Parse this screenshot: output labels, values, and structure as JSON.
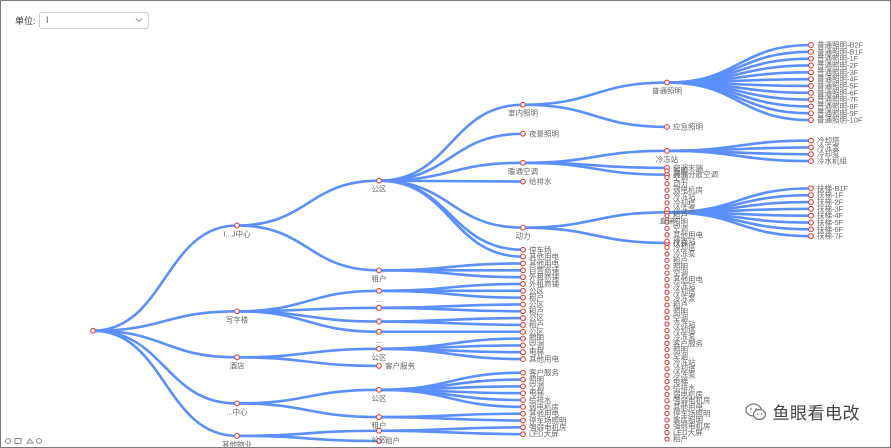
{
  "toolbar": {
    "unit_label": "单位:",
    "unit_value": "I"
  },
  "watermark": {
    "text": "鱼眼看电改",
    "icon": "wechat-icon"
  },
  "colors": {
    "edge": "#5b8ff9",
    "node_stroke": "#d84343",
    "label": "#666666"
  },
  "tree": {
    "name": "",
    "children": [
      {
        "name": "I...J中心",
        "children": [
          {
            "name": "公区",
            "children": [
              {
                "name": "室内照明",
                "children": [
                  {
                    "name": "普通照明",
                    "children": [
                      {
                        "name": "普通照明-B2F"
                      },
                      {
                        "name": "普通照明-B1F"
                      },
                      {
                        "name": "普通照明-1F"
                      },
                      {
                        "name": "普通照明-2F"
                      },
                      {
                        "name": "普通照明-3F"
                      },
                      {
                        "name": "普通照明-4F"
                      },
                      {
                        "name": "普通照明-5F"
                      },
                      {
                        "name": "普通照明-6F"
                      },
                      {
                        "name": "普通照明-7F"
                      },
                      {
                        "name": "普通照明-8F"
                      },
                      {
                        "name": "普通照明-9F"
                      },
                      {
                        "name": "普通照明-10F"
                      }
                    ]
                  },
                  {
                    "name": "应急照明"
                  }
                ]
              },
              {
                "name": "夜景照明"
              },
              {
                "name": "暖通空调",
                "children": [
                  {
                    "name": "冷冻站",
                    "children": [
                      {
                        "name": "冷却塔"
                      },
                      {
                        "name": "冷冻泵"
                      },
                      {
                        "name": "冷却泵"
                      },
                      {
                        "name": "冷水机组"
                      }
                    ]
                  },
                  {
                    "name": "空调末端"
                  },
                  {
                    "name": "其他分散空调"
                  }
                ]
              },
              {
                "name": "给排水"
              },
              {
                "name": "动力",
                "children": [
                  {
                    "name": "直梯",
                    "children": [
                      {
                        "name": "扶梯-B1F"
                      },
                      {
                        "name": "扶梯-1F"
                      },
                      {
                        "name": "扶梯-2F"
                      },
                      {
                        "name": "扶梯-3F"
                      },
                      {
                        "name": "扶梯-4F"
                      },
                      {
                        "name": "扶梯-5F"
                      },
                      {
                        "name": "扶梯-6F"
                      },
                      {
                        "name": "扶梯-7F"
                      }
                    ]
                  },
                  {
                    "name": "扶梯"
                  }
                ]
              },
              {
                "name": "停车场"
              },
              {
                "name": "其他用电"
              }
            ]
          },
          {
            "name": "租户",
            "children": [
              {
                "name": "其他用电"
              },
              {
                "name": "自营商铺"
              },
              {
                "name": "外租商铺"
              }
            ]
          }
        ]
      },
      {
        "name": "写字楼",
        "children": [
          {
            "name": "...",
            "children": [
              {
                "name": "外租商铺"
              },
              {
                "name": "公区"
              },
              {
                "name": "租户"
              }
            ]
          },
          {
            "name": "...",
            "children": [
              {
                "name": "公区"
              },
              {
                "name": "租户"
              }
            ]
          },
          {
            "name": "...",
            "children": [
              {
                "name": "公区"
              },
              {
                "name": "租户"
              }
            ]
          },
          {
            "name": "...",
            "children": [
              {
                "name": "公区"
              }
            ]
          }
        ]
      },
      {
        "name": "酒店",
        "children": [
          {
            "name": "公区",
            "children": [
              {
                "name": "照明"
              },
              {
                "name": "空调"
              },
              {
                "name": "电梯"
              },
              {
                "name": "其他用电"
              }
            ]
          },
          {
            "name": "客户服务"
          }
        ]
      },
      {
        "name": "...中心",
        "children": [
          {
            "name": "公区",
            "children": [
              {
                "name": "客户服务"
              },
              {
                "name": "照明"
              },
              {
                "name": "空调"
              },
              {
                "name": "电梯"
              },
              {
                "name": "给排水"
              },
              {
                "name": "弱电机房"
              }
            ]
          },
          {
            "name": "租户",
            "children": [
              {
                "name": "其他用电"
              },
              {
                "name": "停车场照明"
              }
            ]
          }
        ]
      },
      {
        "name": "其他物业",
        "children": [
          {
            "name": "公区",
            "children": [
              {
                "name": "强弱电机房"
              },
              {
                "name": "LED大屏"
              }
            ]
          },
          {
            "name": "租户"
          }
        ]
      }
    ]
  },
  "l3_group_labels": [
    {
      "text": "照明"
    },
    {
      "text": "空调"
    },
    {
      "text": "动力"
    },
    {
      "text": "弱电机房"
    },
    {
      "text": "冷冻站"
    },
    {
      "text": "冷却塔"
    },
    {
      "text": "冷冻泵"
    },
    {
      "text": "租户"
    },
    {
      "text": "照明"
    },
    {
      "text": "空调"
    },
    {
      "text": "其他用电"
    },
    {
      "text": "冷冻站"
    },
    {
      "text": "冷却塔"
    },
    {
      "text": "冷冻泵"
    },
    {
      "text": "租户"
    },
    {
      "text": "照明"
    },
    {
      "text": "空调"
    },
    {
      "text": "其他用电"
    },
    {
      "text": "冷冻站"
    },
    {
      "text": "冷却塔"
    },
    {
      "text": "冷冻泵"
    },
    {
      "text": "租户"
    },
    {
      "text": "照明"
    },
    {
      "text": "空调"
    },
    {
      "text": "冷冻站"
    },
    {
      "text": "冷却塔"
    },
    {
      "text": "冷冻泵"
    },
    {
      "text": "客户服务"
    },
    {
      "text": "照明"
    },
    {
      "text": "空调"
    },
    {
      "text": "冷冻站"
    },
    {
      "text": "冷却塔"
    },
    {
      "text": "冷冻泵"
    },
    {
      "text": "电梯"
    },
    {
      "text": "给排水"
    },
    {
      "text": "弱电机房"
    },
    {
      "text": "强弱电机房"
    },
    {
      "text": "其他用电"
    },
    {
      "text": "停车场照明"
    },
    {
      "text": "客房照明"
    },
    {
      "text": "强弱电机房"
    },
    {
      "text": "LED大屏"
    },
    {
      "text": "租户"
    }
  ]
}
